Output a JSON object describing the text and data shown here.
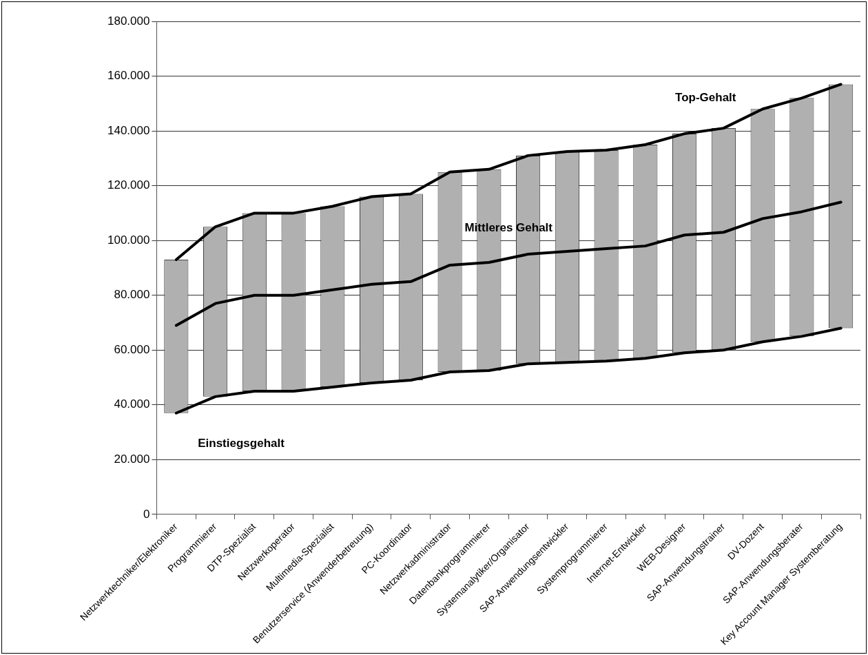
{
  "chart_data": {
    "type": "bar",
    "categories": [
      "Netzwerktechniker/Elektroniker",
      "Programmierer",
      "DTP-Spezialist",
      "Netzwerkoperator",
      "Multimedia-Spezialist",
      "Benutzerservice (Anwenderbetreuung)",
      "PC-Koordinator",
      "Netzwerkadministrator",
      "Datenbankprogrammierer",
      "Systemanalytiker/Organisator",
      "SAP-Anwendungsentwickler",
      "Systemprogrammierer",
      "Internet-Entwickler",
      "WEB-Designer",
      "SAP-Anwendungstrainer",
      "DV-Dozent",
      "SAP-Anwendungsberater",
      "Key Account Manager Systemberatung"
    ],
    "series": [
      {
        "color": "#b0b0b0",
        "base": [
          37000,
          43000,
          45000,
          45000,
          46500,
          48000,
          49000,
          52000,
          52500,
          55000,
          55500,
          56000,
          57000,
          59000,
          60000,
          63000,
          65000,
          68000
        ],
        "values": [
          56000,
          62000,
          65000,
          65000,
          66000,
          68000,
          68000,
          73000,
          73500,
          76000,
          77000,
          77000,
          78000,
          80000,
          81000,
          85000,
          87000,
          89000
        ]
      },
      {
        "type": "line",
        "color": "#000000",
        "values": [
          93000,
          105000,
          110000,
          110000,
          112500,
          116000,
          117000,
          125000,
          126000,
          131000,
          132500,
          133000,
          135000,
          139000,
          141000,
          148000,
          152000,
          157000
        ]
      },
      {
        "type": "line",
        "color": "#000000",
        "values": [
          69000,
          77000,
          80000,
          80000,
          82000,
          84000,
          85000,
          91000,
          92000,
          95000,
          96000,
          97000,
          98000,
          102000,
          103000,
          108000,
          110500,
          114000
        ]
      },
      {
        "type": "line",
        "color": "#000000",
        "values": [
          37000,
          43000,
          45000,
          45000,
          46500,
          48000,
          49000,
          52000,
          52500,
          55000,
          55500,
          56000,
          57000,
          59000,
          60000,
          63000,
          65000,
          68000
        ]
      }
    ],
    "ylim": [
      0,
      180000
    ],
    "yticks": [
      0,
      {
        "value": 20000,
        "label": "20.000"
      },
      {
        "value": 40000,
        "label": "40.000"
      },
      {
        "value": 60000,
        "label": "60.000"
      },
      {
        "value": 80000,
        "label": "80.000"
      },
      {
        "value": 100000,
        "label": "100.000"
      },
      {
        "value": 120000,
        "label": "120.000"
      },
      {
        "value": 140000,
        "label": "140.000"
      },
      {
        "value": 160000,
        "label": "160.000"
      },
      {
        "value": 180000,
        "label": "180.000"
      }
    ],
    "annotations": [
      "Top-Gehalt",
      "Mittleres Gehalt",
      "Einstiegsgehalt"
    ],
    "grid": "y",
    "legend": false,
    "marker": "none",
    "line_style": "solid"
  }
}
